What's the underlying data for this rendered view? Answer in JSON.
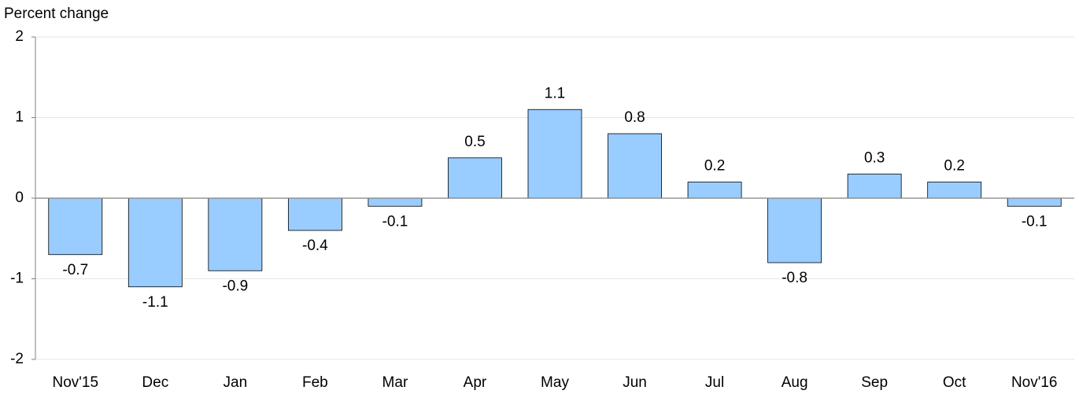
{
  "chart_data": {
    "type": "bar",
    "y_label": "Percent change",
    "categories": [
      "Nov'15",
      "Dec",
      "Jan",
      "Feb",
      "Mar",
      "Apr",
      "May",
      "Jun",
      "Jul",
      "Aug",
      "Sep",
      "Oct",
      "Nov'16"
    ],
    "values": [
      -0.7,
      -1.1,
      -0.9,
      -0.4,
      -0.1,
      0.5,
      1.1,
      0.8,
      0.2,
      -0.8,
      0.3,
      0.2,
      -0.1
    ],
    "color": "#99ccff",
    "ylim": [
      -2,
      2
    ],
    "yticks": [
      -2,
      -1,
      0,
      1,
      2
    ],
    "grid": true
  }
}
